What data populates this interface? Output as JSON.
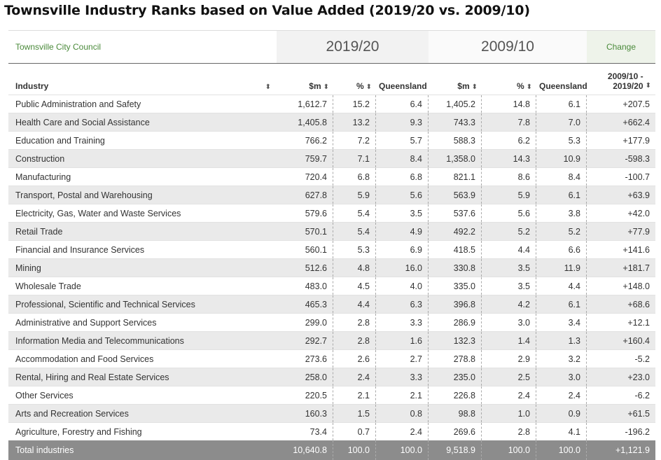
{
  "page_title": "Townsville Industry Ranks based on Value Added (2019/20 vs. 2009/10)",
  "council": "Townsville City Council",
  "year_a": "2019/20",
  "year_b": "2009/10",
  "change_header": "Change",
  "headers": {
    "industry": "Industry",
    "sm": "$m",
    "pct": "%",
    "qld_a": "Queensland",
    "qld_b": "Queensland",
    "change_line1": "2009/10 -",
    "change_line2": "2019/20"
  },
  "sort_icon": "sort-icon",
  "rows": [
    [
      "Public Administration and Safety",
      "1,612.7",
      "15.2",
      "6.4",
      "1,405.2",
      "14.8",
      "6.1",
      "+207.5"
    ],
    [
      "Health Care and Social Assistance",
      "1,405.8",
      "13.2",
      "9.3",
      "743.3",
      "7.8",
      "7.0",
      "+662.4"
    ],
    [
      "Education and Training",
      "766.2",
      "7.2",
      "5.7",
      "588.3",
      "6.2",
      "5.3",
      "+177.9"
    ],
    [
      "Construction",
      "759.7",
      "7.1",
      "8.4",
      "1,358.0",
      "14.3",
      "10.9",
      "-598.3"
    ],
    [
      "Manufacturing",
      "720.4",
      "6.8",
      "6.8",
      "821.1",
      "8.6",
      "8.4",
      "-100.7"
    ],
    [
      "Transport, Postal and Warehousing",
      "627.8",
      "5.9",
      "5.6",
      "563.9",
      "5.9",
      "6.1",
      "+63.9"
    ],
    [
      "Electricity, Gas, Water and Waste Services",
      "579.6",
      "5.4",
      "3.5",
      "537.6",
      "5.6",
      "3.8",
      "+42.0"
    ],
    [
      "Retail Trade",
      "570.1",
      "5.4",
      "4.9",
      "492.2",
      "5.2",
      "5.2",
      "+77.9"
    ],
    [
      "Financial and Insurance Services",
      "560.1",
      "5.3",
      "6.9",
      "418.5",
      "4.4",
      "6.6",
      "+141.6"
    ],
    [
      "Mining",
      "512.6",
      "4.8",
      "16.0",
      "330.8",
      "3.5",
      "11.9",
      "+181.7"
    ],
    [
      "Wholesale Trade",
      "483.0",
      "4.5",
      "4.0",
      "335.0",
      "3.5",
      "4.4",
      "+148.0"
    ],
    [
      "Professional, Scientific and Technical Services",
      "465.3",
      "4.4",
      "6.3",
      "396.8",
      "4.2",
      "6.1",
      "+68.6"
    ],
    [
      "Administrative and Support Services",
      "299.0",
      "2.8",
      "3.3",
      "286.9",
      "3.0",
      "3.4",
      "+12.1"
    ],
    [
      "Information Media and Telecommunications",
      "292.7",
      "2.8",
      "1.6",
      "132.3",
      "1.4",
      "1.3",
      "+160.4"
    ],
    [
      "Accommodation and Food Services",
      "273.6",
      "2.6",
      "2.7",
      "278.8",
      "2.9",
      "3.2",
      "-5.2"
    ],
    [
      "Rental, Hiring and Real Estate Services",
      "258.0",
      "2.4",
      "3.3",
      "235.0",
      "2.5",
      "3.0",
      "+23.0"
    ],
    [
      "Other Services",
      "220.5",
      "2.1",
      "2.1",
      "226.8",
      "2.4",
      "2.4",
      "-6.2"
    ],
    [
      "Arts and Recreation Services",
      "160.3",
      "1.5",
      "0.8",
      "98.8",
      "1.0",
      "0.9",
      "+61.5"
    ],
    [
      "Agriculture, Forestry and Fishing",
      "73.4",
      "0.7",
      "2.4",
      "269.6",
      "2.8",
      "4.1",
      "-196.2"
    ]
  ],
  "total": [
    "Total industries",
    "10,640.8",
    "100.0",
    "100.0",
    "9,518.9",
    "100.0",
    "100.0",
    "+1,121.9"
  ],
  "colors": {
    "accent_green": "#4a8a3a",
    "total_bg": "#8c8c8c",
    "alt_row": "#eaeaea"
  }
}
